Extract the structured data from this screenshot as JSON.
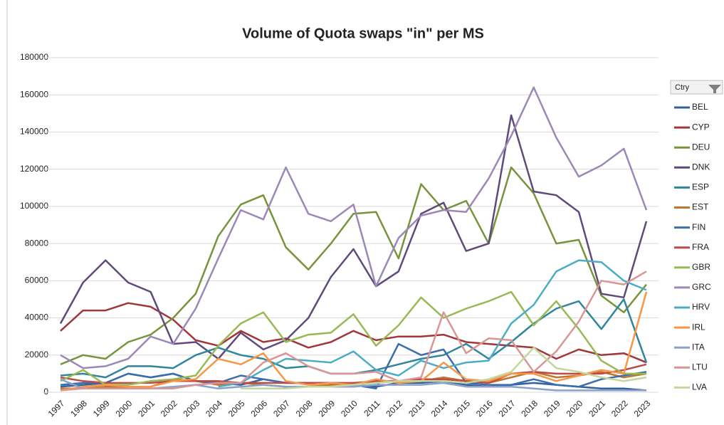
{
  "chart_data": {
    "type": "line",
    "title": "Volume of Quota swaps \"in\" per MS",
    "legend_title": "Ctry",
    "x": [
      "1997",
      "1998",
      "1999",
      "2000",
      "2001",
      "2002",
      "2003",
      "2004",
      "2005",
      "2006",
      "2007",
      "2008",
      "2009",
      "2010",
      "2011",
      "2012",
      "2013",
      "2014",
      "2015",
      "2016",
      "2017",
      "2018",
      "2019",
      "2020",
      "2021",
      "2022",
      "2023"
    ],
    "ylim": [
      0,
      180000
    ],
    "yticks": [
      0,
      20000,
      40000,
      60000,
      80000,
      100000,
      120000,
      140000,
      160000,
      180000
    ],
    "grid": true,
    "legend": "right",
    "series": [
      {
        "name": "BEL",
        "color": "#35619b",
        "values": [
          3000,
          4000,
          5000,
          10000,
          8000,
          10000,
          6000,
          5000,
          4000,
          7000,
          5000,
          5000,
          5000,
          4000,
          3000,
          5000,
          5000,
          6000,
          4000,
          3000,
          4000,
          5000,
          4000,
          3000,
          2000,
          2000,
          1000
        ]
      },
      {
        "name": "CYP",
        "color": "#a0373a",
        "values": [
          33000,
          44000,
          44000,
          48000,
          46000,
          39000,
          28000,
          25000,
          33000,
          27000,
          29000,
          24000,
          27000,
          33000,
          28000,
          30000,
          30000,
          31000,
          27000,
          26000,
          25000,
          24000,
          18000,
          23000,
          20000,
          21000,
          16000
        ]
      },
      {
        "name": "DEU",
        "color": "#77933c",
        "values": [
          15000,
          20000,
          18000,
          27000,
          31000,
          40000,
          53000,
          84000,
          101000,
          106000,
          78000,
          66000,
          80000,
          96000,
          97000,
          72000,
          112000,
          98000,
          103000,
          80000,
          121000,
          107000,
          80000,
          82000,
          52000,
          43000,
          58000
        ]
      },
      {
        "name": "DNK",
        "color": "#5f4a7b",
        "values": [
          37000,
          59000,
          71000,
          59000,
          54000,
          26000,
          27000,
          18000,
          32000,
          23000,
          28000,
          40000,
          62000,
          77000,
          57000,
          65000,
          96000,
          102000,
          76000,
          80000,
          149000,
          108000,
          106000,
          97000,
          53000,
          51000,
          92000
        ]
      },
      {
        "name": "ESP",
        "color": "#31859c",
        "values": [
          9000,
          10000,
          8000,
          14000,
          14000,
          13000,
          20000,
          24000,
          20000,
          18000,
          13000,
          14000,
          10000,
          10000,
          12000,
          15000,
          18000,
          20000,
          26000,
          18000,
          27000,
          37000,
          45000,
          49000,
          34000,
          50000,
          16000
        ]
      },
      {
        "name": "EST",
        "color": "#c0762b",
        "values": [
          2000,
          2000,
          3000,
          3000,
          3000,
          7000,
          6000,
          4000,
          5000,
          4000,
          3000,
          3000,
          4000,
          5000,
          5000,
          6000,
          6000,
          8000,
          6000,
          5000,
          8000,
          11000,
          8000,
          9000,
          11000,
          8000,
          10000
        ]
      },
      {
        "name": "FIN",
        "color": "#3a6eaa",
        "values": [
          4000,
          5000,
          5000,
          10000,
          8000,
          10000,
          6000,
          5000,
          9000,
          7000,
          5000,
          5000,
          5000,
          4000,
          2000,
          26000,
          20000,
          23000,
          5000,
          4000,
          4000,
          7000,
          4000,
          3000,
          7000,
          9000,
          11000
        ]
      },
      {
        "name": "FRA",
        "color": "#be4b48",
        "values": [
          8000,
          6000,
          5000,
          5000,
          5000,
          6000,
          6000,
          6000,
          5000,
          5000,
          5000,
          5000,
          5000,
          5000,
          6000,
          6000,
          7000,
          7000,
          6000,
          5000,
          10000,
          11000,
          10000,
          10000,
          10000,
          12000,
          15000
        ]
      },
      {
        "name": "GBR",
        "color": "#98b954",
        "values": [
          6000,
          12000,
          4000,
          4000,
          6000,
          7000,
          9000,
          25000,
          37000,
          43000,
          27000,
          31000,
          32000,
          42000,
          25000,
          36000,
          51000,
          40000,
          45000,
          49000,
          54000,
          36000,
          49000,
          34000,
          17000,
          10000,
          10000
        ]
      },
      {
        "name": "GRC",
        "color": "#9d87b8",
        "values": [
          20000,
          13000,
          14000,
          18000,
          30000,
          26000,
          45000,
          72000,
          98000,
          93000,
          121000,
          96000,
          92000,
          101000,
          57000,
          83000,
          95000,
          98000,
          97000,
          115000,
          138000,
          164000,
          137000,
          116000,
          122000,
          131000,
          98000
        ]
      },
      {
        "name": "HRV",
        "color": "#4bacc6",
        "values": [
          null,
          null,
          null,
          null,
          null,
          null,
          null,
          3000,
          5000,
          12000,
          18000,
          17000,
          16000,
          22000,
          12000,
          9000,
          17000,
          13000,
          16000,
          17000,
          37000,
          47000,
          65000,
          71000,
          70000,
          60000,
          55000
        ]
      },
      {
        "name": "IRL",
        "color": "#f79646",
        "values": [
          1000,
          3000,
          4000,
          3000,
          3000,
          6000,
          7000,
          18000,
          15000,
          21000,
          6000,
          4000,
          5000,
          4000,
          7000,
          5000,
          6000,
          16000,
          7000,
          6000,
          10000,
          10000,
          6000,
          9000,
          12000,
          10000,
          54000
        ]
      },
      {
        "name": "ITA",
        "color": "#8aa2cb",
        "values": [
          7000,
          2000,
          2000,
          2000,
          2000,
          3000,
          4000,
          2000,
          3000,
          4000,
          3000,
          3000,
          3000,
          3000,
          4000,
          4000,
          4000,
          5000,
          3000,
          3000,
          3000,
          2000,
          1000,
          1000,
          1000,
          1000,
          1000
        ]
      },
      {
        "name": "LTU",
        "color": "#d99694",
        "values": [
          1000,
          2000,
          2000,
          2000,
          2000,
          2000,
          4000,
          5000,
          5000,
          16000,
          21000,
          14000,
          10000,
          10000,
          11000,
          6000,
          8000,
          43000,
          21000,
          29000,
          28000,
          11000,
          22000,
          38000,
          60000,
          58000,
          65000
        ]
      },
      {
        "name": "LVA",
        "color": "#c3d69b",
        "values": [
          null,
          null,
          null,
          null,
          null,
          null,
          null,
          null,
          2000,
          2000,
          2000,
          3000,
          3000,
          4000,
          5000,
          6000,
          6000,
          6000,
          5000,
          7000,
          11000,
          24000,
          13000,
          11000,
          8000,
          6000,
          8000
        ]
      }
    ]
  }
}
